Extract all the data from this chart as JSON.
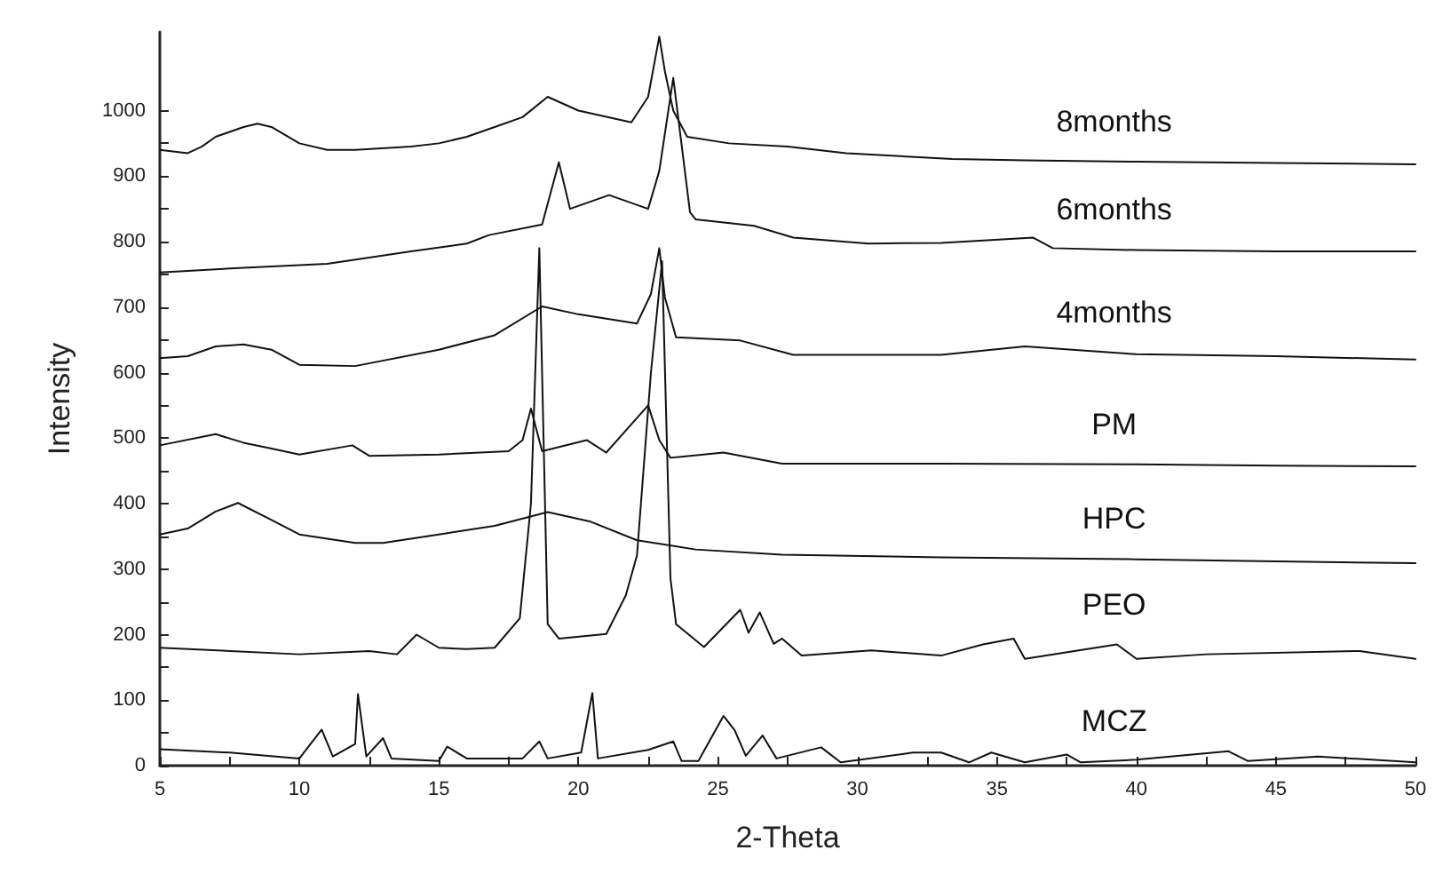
{
  "chart_data": {
    "type": "line",
    "xlabel": "2-Theta",
    "ylabel": "Intensity",
    "xlim": [
      5,
      50
    ],
    "ylim": [
      0,
      1120
    ],
    "xticks": [
      5,
      {
        "value": 7.5,
        "label": null
      },
      10,
      {
        "value": 12.5,
        "label": null
      },
      15,
      {
        "value": 17.5,
        "label": null
      },
      20,
      {
        "value": 22.5,
        "label": null
      },
      25,
      {
        "value": 27.5,
        "label": null
      },
      30,
      {
        "value": 32.5,
        "label": null
      },
      35,
      {
        "value": 37.5,
        "label": null
      },
      40,
      {
        "value": 42.5,
        "label": null
      },
      45,
      {
        "value": 47.5,
        "label": null
      },
      50
    ],
    "yticks": [
      0,
      {
        "value": 50,
        "label": null
      },
      100,
      {
        "value": 150,
        "label": null
      },
      200,
      {
        "value": 250,
        "label": null
      },
      300,
      {
        "value": 350,
        "label": null
      },
      400,
      {
        "value": 450,
        "label": null
      },
      500,
      {
        "value": 550,
        "label": null
      },
      600,
      {
        "value": 650,
        "label": null
      },
      700,
      {
        "value": 750,
        "label": null
      },
      800,
      {
        "value": 850,
        "label": null
      },
      900,
      {
        "value": 950,
        "label": null
      },
      1000
    ],
    "grid": false,
    "marker": "none",
    "line_style": "solid",
    "series": [
      {
        "name": "8months",
        "color": "#111111",
        "x": [
          5,
          6,
          6.5,
          7,
          8,
          8.5,
          9,
          10,
          11,
          12,
          14,
          15,
          16,
          17,
          18,
          18.9,
          20,
          21.9,
          22.5,
          22.9,
          23.1,
          23.4,
          23.9,
          25.4,
          27.5,
          29.6,
          33.4,
          36,
          40,
          45,
          50
        ],
        "values": [
          940,
          935,
          945,
          960,
          975,
          980,
          975,
          950,
          940,
          940,
          945,
          950,
          960,
          975,
          990,
          1021,
          1000,
          982,
          1021,
          1113,
          1060,
          1000,
          960,
          950,
          945,
          935,
          926,
          924,
          922,
          920,
          918
        ]
      },
      {
        "name": "6months",
        "color": "#111111",
        "x": [
          5,
          8,
          11,
          14,
          16,
          16.8,
          18.7,
          19.3,
          19.7,
          21.1,
          22.5,
          22.9,
          23.4,
          24,
          24.2,
          26.3,
          27.7,
          30.4,
          33,
          36.3,
          37,
          40,
          45,
          50
        ],
        "values": [
          753,
          760,
          766,
          785,
          797,
          810,
          826,
          921,
          850,
          871,
          850,
          908,
          1050,
          845,
          834,
          824,
          806,
          797,
          798,
          806,
          790,
          787,
          785,
          785
        ]
      },
      {
        "name": "4months",
        "color": "#111111",
        "x": [
          5,
          6,
          7,
          8,
          9,
          10,
          12,
          15,
          17,
          18.7,
          20,
          22.1,
          22.6,
          22.9,
          23.1,
          23.5,
          25.8,
          27.7,
          33,
          36,
          40,
          45,
          50
        ],
        "values": [
          622,
          625,
          640,
          643,
          635,
          612,
          610,
          635,
          657,
          701,
          689,
          675,
          720,
          790,
          715,
          654,
          649,
          627,
          627,
          640,
          628,
          625,
          620
        ]
      },
      {
        "name": "PM",
        "color": "#111111",
        "x": [
          5,
          7,
          8,
          9,
          10,
          11.9,
          12.5,
          15,
          17.5,
          18,
          18.3,
          18.7,
          20.3,
          21,
          22.5,
          22.9,
          23.3,
          25.2,
          27.3,
          33,
          40,
          45,
          50
        ],
        "values": [
          489,
          506,
          493,
          484,
          475,
          489,
          473,
          475,
          480,
          497,
          545,
          480,
          497,
          478,
          550,
          497,
          470,
          478,
          461,
          461,
          460,
          458,
          457
        ]
      },
      {
        "name": "HPC",
        "color": "#111111",
        "x": [
          5,
          6,
          7,
          7.8,
          9,
          10,
          12,
          13,
          15,
          17,
          18.9,
          20.4,
          22.1,
          24.2,
          27.3,
          33,
          40,
          45,
          50
        ],
        "values": [
          353,
          362,
          388,
          401,
          375,
          353,
          340,
          340,
          353,
          366,
          387,
          373,
          344,
          330,
          322,
          318,
          315,
          312,
          309
        ]
      },
      {
        "name": "PEO",
        "color": "#111111",
        "x": [
          5,
          10,
          12.5,
          13.5,
          14.2,
          15,
          16,
          17,
          17.9,
          18.3,
          18.6,
          18.9,
          19.3,
          21,
          21.7,
          22.1,
          22.6,
          23,
          23.3,
          23.5,
          24.5,
          25.8,
          26.1,
          26.5,
          27,
          27.3,
          28,
          30.5,
          33,
          34.5,
          35.6,
          36,
          39.3,
          40,
          42.5,
          48,
          50
        ],
        "values": [
          180,
          170,
          175,
          170,
          200,
          180,
          178,
          180,
          225,
          400,
          790,
          216,
          194,
          201,
          260,
          321,
          600,
          770,
          286,
          216,
          181,
          238,
          203,
          234,
          186,
          194,
          168,
          176,
          168,
          185,
          194,
          163,
          185,
          163,
          170,
          175,
          163
        ]
      },
      {
        "name": "MCZ",
        "color": "#111111",
        "x": [
          5,
          7.5,
          10,
          10.8,
          11.2,
          12,
          12.1,
          12.4,
          13,
          13.3,
          15,
          15.3,
          16,
          18,
          18.6,
          18.9,
          20.1,
          20.5,
          20.7,
          22.5,
          23.4,
          23.7,
          24.3,
          25.2,
          25.6,
          26,
          26.6,
          27.1,
          28.7,
          29.4,
          32,
          33,
          34,
          34.8,
          36,
          37.5,
          38,
          40,
          43.3,
          44,
          46.5,
          50
        ],
        "values": [
          25,
          20,
          11,
          55,
          14,
          33,
          109,
          14,
          42,
          11,
          7,
          29,
          11,
          11,
          37,
          11,
          20,
          111,
          11,
          24,
          37,
          7,
          7,
          76,
          54,
          15,
          46,
          11,
          28,
          5,
          20,
          20,
          5,
          20,
          5,
          17,
          5,
          9,
          22,
          7,
          14,
          5
        ]
      }
    ]
  }
}
